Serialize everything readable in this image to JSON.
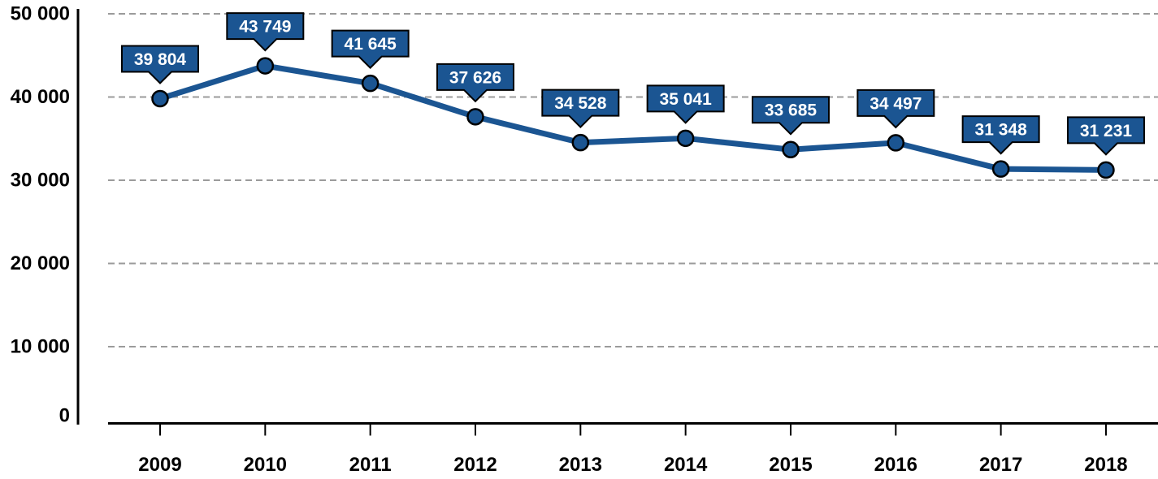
{
  "chart_data": {
    "type": "line",
    "title": "",
    "xlabel": "",
    "ylabel": "",
    "categories": [
      "2009",
      "2010",
      "2011",
      "2012",
      "2013",
      "2014",
      "2015",
      "2016",
      "2017",
      "2018"
    ],
    "values": [
      39804,
      43749,
      41645,
      37626,
      34528,
      35041,
      33685,
      34497,
      31348,
      31231
    ],
    "point_labels": [
      "39 804",
      "43 749",
      "41 645",
      "37 626",
      "34 528",
      "35 041",
      "33 685",
      "34 497",
      "31 348",
      "31 231"
    ],
    "y_ticks": [
      0,
      10000,
      20000,
      30000,
      40000,
      50000
    ],
    "y_tick_labels": [
      "0",
      "10 000",
      "20 000",
      "30 000",
      "40 000",
      "50 000"
    ],
    "ylim": [
      0,
      50000
    ],
    "grid": "horizontal-dashed",
    "legend": "none",
    "colors": {
      "line": "#1B5592",
      "marker_fill": "#1B5592",
      "marker_stroke": "#000000",
      "callout_bg": "#1B5592",
      "callout_border": "#000000",
      "callout_text": "#FFFFFF",
      "gridline": "#9B9B9B",
      "axis": "#000000",
      "tick_label": "#000000"
    }
  }
}
